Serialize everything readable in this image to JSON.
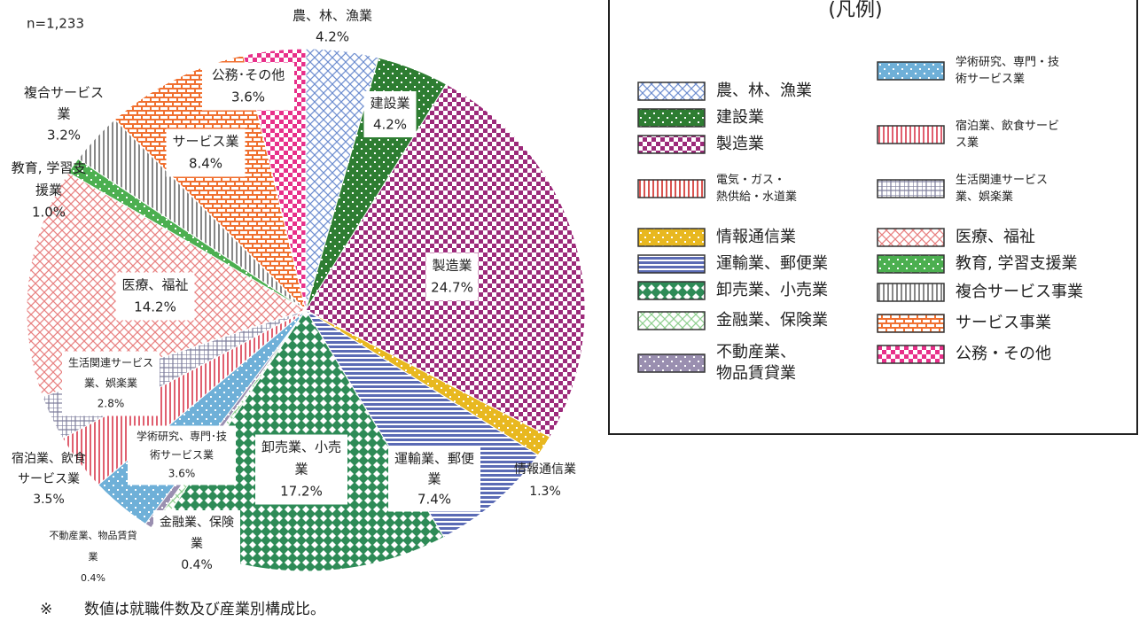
{
  "chart_data": {
    "type": "pie",
    "note": "n=1,233",
    "footnote_mark": "※",
    "footnote": "数値は就職件数及び産業別構成比。",
    "legend_title": "(凡例)",
    "slices": [
      {
        "label": [
          "農、林、漁業"
        ],
        "value": 4.2,
        "value_label": "4.2%",
        "color": "#6f8fd0",
        "pattern": "diag"
      },
      {
        "label": [
          "建設業"
        ],
        "value": 4.2,
        "value_label": "4.2%",
        "color": "#2e7d32",
        "pattern": "dots"
      },
      {
        "label": [
          "製造業"
        ],
        "value": 24.7,
        "value_label": "24.7%",
        "color": "#9c2a7a",
        "pattern": "check"
      },
      {
        "label": [
          "情報通信業"
        ],
        "value": 1.3,
        "value_label": "1.3%",
        "color": "#e8b820",
        "pattern": "dots"
      },
      {
        "label": [
          "運輸業、郵便",
          "業"
        ],
        "value": 7.4,
        "value_label": "7.4%",
        "color": "#5b6bb5",
        "pattern": "hlines"
      },
      {
        "label": [
          "卸売業、小売",
          "業"
        ],
        "value": 17.2,
        "value_label": "17.2%",
        "color": "#2e8b57",
        "pattern": "diamond"
      },
      {
        "label": [
          "金融業、保険",
          "業"
        ],
        "value": 0.4,
        "value_label": "0.4%",
        "color": "#8fcf8f",
        "pattern": "diag"
      },
      {
        "label": [
          "不動産業、物品賃貸",
          "業"
        ],
        "value": 0.4,
        "value_label": "0.4%",
        "color": "#9a8fb0",
        "pattern": "dots"
      },
      {
        "label": [
          "学術研究、専門･技",
          "術サービス業"
        ],
        "value": 3.6,
        "value_label": "3.6%",
        "color": "#6fb0d8",
        "pattern": "dots"
      },
      {
        "label": [
          "宿泊業、飲食",
          "サービス業"
        ],
        "value": 3.5,
        "value_label": "3.5%",
        "color": "#e06070",
        "pattern": "vlines"
      },
      {
        "label": [
          "生活関連サービス",
          "業、娯楽業"
        ],
        "value": 2.8,
        "value_label": "2.8%",
        "color": "#7a7a9a",
        "pattern": "grid"
      },
      {
        "label": [
          "医療、福祉"
        ],
        "value": 14.2,
        "value_label": "14.2%",
        "color": "#e88080",
        "pattern": "diag"
      },
      {
        "label": [
          "教育, 学習支",
          "援業"
        ],
        "value": 1.0,
        "value_label": "1.0%",
        "color": "#4caf50",
        "pattern": "dots"
      },
      {
        "label": [
          "複合サービス",
          "業"
        ],
        "value": 3.2,
        "value_label": "3.2%",
        "color": "#888888",
        "pattern": "vlines"
      },
      {
        "label": [
          "サービス業"
        ],
        "value": 8.4,
        "value_label": "8.4%",
        "color": "#f07030",
        "pattern": "bricks"
      },
      {
        "label": [
          "公務･その他"
        ],
        "value": 3.6,
        "value_label": "3.6%",
        "color": "#e8308a",
        "pattern": "check"
      }
    ],
    "legend": [
      {
        "name": [
          "農、林、漁業"
        ],
        "color": "#6f8fd0",
        "pattern": "diag"
      },
      {
        "name": [
          "建設業"
        ],
        "color": "#2e7d32",
        "pattern": "dots"
      },
      {
        "name": [
          "製造業"
        ],
        "color": "#9c2a7a",
        "pattern": "check"
      },
      {
        "name": [
          "電気・ガス・",
          "熱供給・水道業"
        ],
        "color": "#d9534f",
        "pattern": "vlines"
      },
      {
        "name": [
          "情報通信業"
        ],
        "color": "#e8b820",
        "pattern": "dots"
      },
      {
        "name": [
          "運輸業、郵便業"
        ],
        "color": "#5b6bb5",
        "pattern": "hlines"
      },
      {
        "name": [
          "卸売業、小売業"
        ],
        "color": "#2e8b57",
        "pattern": "diamond"
      },
      {
        "name": [
          "金融業、保険業"
        ],
        "color": "#8fcf8f",
        "pattern": "diag"
      },
      {
        "name": [
          "不動産業、",
          "物品賃貸業"
        ],
        "color": "#9a8fb0",
        "pattern": "dots"
      },
      {
        "name": [
          "学術研究、専門・技",
          "術サービス業"
        ],
        "color": "#6fb0d8",
        "pattern": "dots"
      },
      {
        "name": [
          "宿泊業、飲食サービ",
          "ス業"
        ],
        "color": "#e06070",
        "pattern": "vlines"
      },
      {
        "name": [
          "生活関連サービス",
          "業、娯楽業"
        ],
        "color": "#7a7a9a",
        "pattern": "grid"
      },
      {
        "name": [
          "医療、福祉"
        ],
        "color": "#e88080",
        "pattern": "diag"
      },
      {
        "name": [
          "教育, 学習支援業"
        ],
        "color": "#4caf50",
        "pattern": "dots"
      },
      {
        "name": [
          "複合サービス事業"
        ],
        "color": "#888888",
        "pattern": "vlines"
      },
      {
        "name": [
          "サービス事業"
        ],
        "color": "#f07030",
        "pattern": "bricks"
      },
      {
        "name": [
          "公務・その他"
        ],
        "color": "#e8308a",
        "pattern": "check"
      }
    ]
  }
}
